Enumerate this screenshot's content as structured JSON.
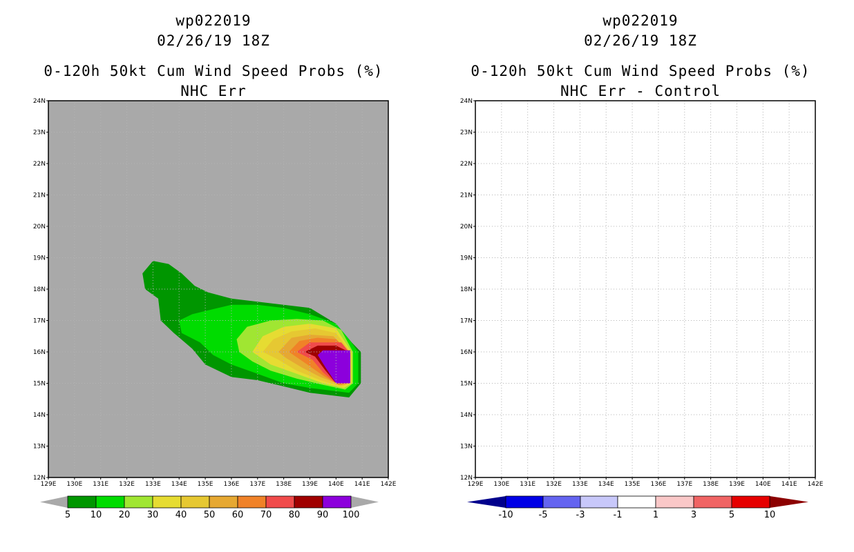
{
  "chart_data": [
    {
      "type": "heatmap",
      "storm_id": "wp022019",
      "date": "02/26/19 18Z",
      "title": "0-120h 50kt Cum Wind Speed Probs (%)",
      "subtitle": "NHC Err",
      "x_ticks": [
        "129E",
        "130E",
        "131E",
        "132E",
        "133E",
        "134E",
        "135E",
        "136E",
        "137E",
        "138E",
        "139E",
        "140E",
        "141E",
        "142E"
      ],
      "y_ticks": [
        "12N",
        "13N",
        "14N",
        "15N",
        "16N",
        "17N",
        "18N",
        "19N",
        "20N",
        "21N",
        "22N",
        "23N",
        "24N"
      ],
      "xlim": [
        129,
        142
      ],
      "ylim": [
        12,
        24
      ],
      "background": "#a9a9a9",
      "legend_labels": [
        "5",
        "10",
        "20",
        "30",
        "40",
        "50",
        "60",
        "70",
        "80",
        "90",
        "100"
      ],
      "legend_colors": [
        "#009600",
        "#00dc00",
        "#a0e632",
        "#e6dc32",
        "#e6c832",
        "#e6a832",
        "#f08228",
        "#f04b4b",
        "#a00000",
        "#8c00dc"
      ],
      "arrow_color": "#a9a9a9",
      "contours": [
        {
          "level": "5",
          "color": "#009600",
          "lonlat": [
            [
              133.0,
              18.9
            ],
            [
              133.6,
              18.8
            ],
            [
              134.1,
              18.5
            ],
            [
              134.6,
              18.1
            ],
            [
              135.1,
              17.9
            ],
            [
              136.0,
              17.7
            ],
            [
              137.0,
              17.6
            ],
            [
              138.0,
              17.5
            ],
            [
              139.0,
              17.4
            ],
            [
              140.0,
              16.9
            ],
            [
              140.6,
              16.3
            ],
            [
              140.95,
              16.0
            ],
            [
              140.95,
              15.0
            ],
            [
              140.5,
              14.55
            ],
            [
              139.0,
              14.7
            ],
            [
              138.0,
              14.9
            ],
            [
              137.0,
              15.1
            ],
            [
              136.0,
              15.2
            ],
            [
              135.0,
              15.6
            ],
            [
              134.5,
              16.1
            ],
            [
              133.8,
              16.6
            ],
            [
              133.3,
              17.0
            ],
            [
              133.2,
              17.7
            ],
            [
              132.7,
              18.0
            ],
            [
              132.6,
              18.5
            ]
          ]
        },
        {
          "level": "10",
          "color": "#00dc00",
          "lonlat": [
            [
              134.0,
              17.0
            ],
            [
              134.5,
              17.2
            ],
            [
              135.0,
              17.3
            ],
            [
              136.0,
              17.5
            ],
            [
              137.0,
              17.5
            ],
            [
              138.0,
              17.4
            ],
            [
              139.0,
              17.2
            ],
            [
              140.0,
              16.9
            ],
            [
              140.5,
              16.4
            ],
            [
              140.85,
              16.0
            ],
            [
              140.85,
              15.0
            ],
            [
              140.5,
              14.7
            ],
            [
              139.0,
              14.85
            ],
            [
              138.0,
              15.0
            ],
            [
              137.0,
              15.3
            ],
            [
              136.0,
              15.6
            ],
            [
              135.3,
              15.9
            ],
            [
              134.8,
              16.3
            ],
            [
              134.1,
              16.6
            ]
          ]
        },
        {
          "level": "20",
          "color": "#a0e632",
          "lonlat": [
            [
              136.2,
              16.4
            ],
            [
              136.6,
              16.8
            ],
            [
              137.5,
              17.0
            ],
            [
              138.5,
              17.05
            ],
            [
              139.5,
              17.0
            ],
            [
              140.2,
              16.7
            ],
            [
              140.65,
              16.0
            ],
            [
              140.65,
              15.0
            ],
            [
              140.35,
              14.8
            ],
            [
              139.5,
              14.95
            ],
            [
              138.5,
              15.15
            ],
            [
              137.5,
              15.4
            ],
            [
              136.8,
              15.7
            ],
            [
              136.3,
              16.0
            ]
          ]
        },
        {
          "level": "30",
          "color": "#e6dc32",
          "lonlat": [
            [
              136.8,
              16.0
            ],
            [
              137.2,
              16.5
            ],
            [
              138.0,
              16.8
            ],
            [
              139.0,
              16.9
            ],
            [
              140.0,
              16.75
            ],
            [
              140.6,
              16.0
            ],
            [
              140.6,
              15.0
            ],
            [
              140.3,
              14.85
            ],
            [
              139.5,
              15.0
            ],
            [
              138.5,
              15.3
            ],
            [
              137.5,
              15.6
            ]
          ]
        },
        {
          "level": "40",
          "color": "#e6c832",
          "lonlat": [
            [
              137.2,
              16.0
            ],
            [
              137.6,
              16.4
            ],
            [
              138.3,
              16.65
            ],
            [
              139.2,
              16.75
            ],
            [
              140.0,
              16.6
            ],
            [
              140.55,
              16.0
            ],
            [
              140.55,
              15.0
            ],
            [
              140.2,
              14.9
            ],
            [
              139.4,
              15.1
            ],
            [
              138.5,
              15.4
            ],
            [
              137.8,
              15.75
            ]
          ]
        },
        {
          "level": "50",
          "color": "#e6a832",
          "lonlat": [
            [
              137.8,
              16.0
            ],
            [
              138.3,
              16.45
            ],
            [
              139.0,
              16.55
            ],
            [
              139.9,
              16.5
            ],
            [
              140.5,
              16.0
            ],
            [
              140.5,
              15.0
            ],
            [
              140.2,
              14.95
            ],
            [
              139.4,
              15.2
            ],
            [
              138.7,
              15.5
            ],
            [
              138.1,
              15.8
            ]
          ]
        },
        {
          "level": "60",
          "color": "#f08228",
          "lonlat": [
            [
              138.2,
              16.0
            ],
            [
              138.6,
              16.35
            ],
            [
              139.3,
              16.45
            ],
            [
              140.0,
              16.4
            ],
            [
              140.5,
              16.0
            ],
            [
              140.5,
              15.0
            ],
            [
              140.1,
              14.95
            ],
            [
              139.5,
              15.25
            ],
            [
              138.9,
              15.6
            ]
          ]
        },
        {
          "level": "70",
          "color": "#f04b4b",
          "lonlat": [
            [
              138.5,
              16.0
            ],
            [
              139.0,
              16.3
            ],
            [
              139.6,
              16.3
            ],
            [
              140.2,
              16.3
            ],
            [
              140.5,
              16.0
            ],
            [
              140.5,
              15.0
            ],
            [
              140.0,
              15.0
            ],
            [
              139.5,
              15.35
            ],
            [
              139.1,
              15.75
            ]
          ]
        },
        {
          "level": "80",
          "color": "#a00000",
          "lonlat": [
            [
              138.8,
              16.0
            ],
            [
              139.3,
              16.2
            ],
            [
              140.0,
              16.2
            ],
            [
              140.5,
              16.0
            ],
            [
              140.5,
              15.0
            ],
            [
              140.0,
              15.0
            ],
            [
              139.6,
              15.4
            ],
            [
              139.2,
              15.85
            ]
          ]
        },
        {
          "level": "90",
          "color": "#8c00dc",
          "lonlat": [
            [
              139.3,
              15.9
            ],
            [
              139.5,
              16.05
            ],
            [
              140.55,
              16.05
            ],
            [
              140.55,
              15.0
            ],
            [
              140.0,
              15.0
            ],
            [
              139.6,
              15.5
            ]
          ]
        }
      ]
    },
    {
      "type": "heatmap",
      "storm_id": "wp022019",
      "date": "02/26/19 18Z",
      "title": "0-120h 50kt Cum Wind Speed Probs (%)",
      "subtitle": "NHC Err - Control",
      "x_ticks": [
        "129E",
        "130E",
        "131E",
        "132E",
        "133E",
        "134E",
        "135E",
        "136E",
        "137E",
        "138E",
        "139E",
        "140E",
        "141E",
        "142E"
      ],
      "y_ticks": [
        "12N",
        "13N",
        "14N",
        "15N",
        "16N",
        "17N",
        "18N",
        "19N",
        "20N",
        "21N",
        "22N",
        "23N",
        "24N"
      ],
      "xlim": [
        129,
        142
      ],
      "ylim": [
        12,
        24
      ],
      "background": "#ffffff",
      "grid": true,
      "legend_labels": [
        "-10",
        "-5",
        "-3",
        "-1",
        "1",
        "3",
        "5",
        "10"
      ],
      "legend_colors": [
        "#0000e6",
        "#6464f0",
        "#c8c8fa",
        "#ffffff",
        "#fac8c8",
        "#f06464",
        "#e60000"
      ],
      "arrow_left_color": "#00008c",
      "arrow_right_color": "#8c0000",
      "contours": []
    }
  ]
}
